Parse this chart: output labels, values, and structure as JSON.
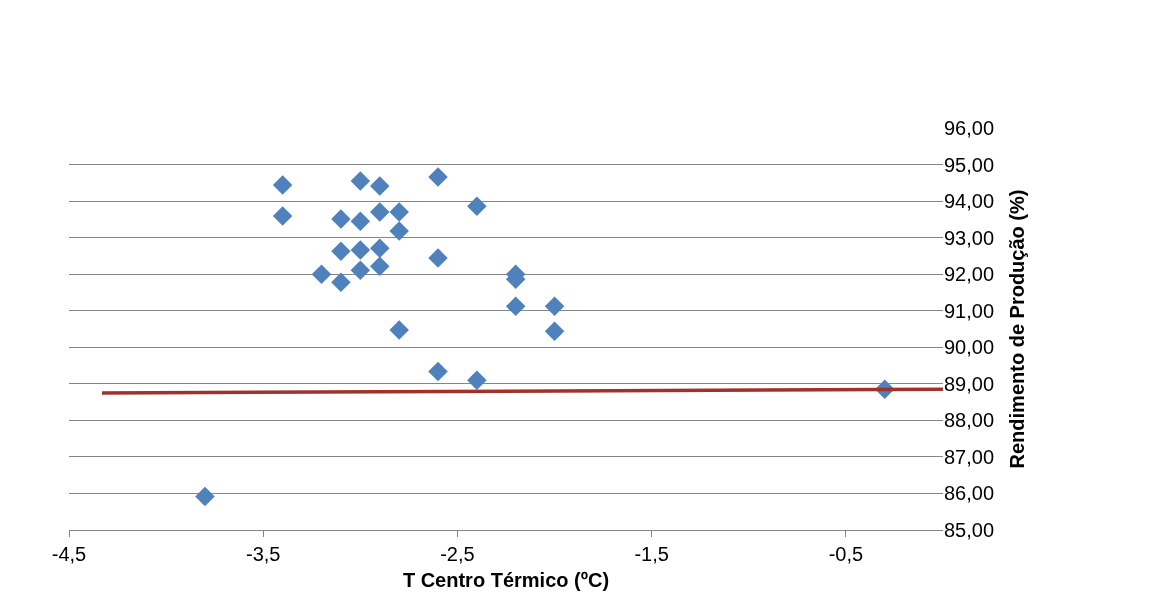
{
  "chart_data": {
    "type": "scatter",
    "xlabel": "T Centro Térmico (ºC)",
    "ylabel": "Rendimento de Produção (%)",
    "marker": "diamond",
    "grid": "y",
    "legend": false,
    "xlim": [
      -4.5,
      0
    ],
    "xticks": [
      {
        "value": -4.5,
        "label": "-4,5"
      },
      {
        "value": -3.5,
        "label": "-3,5"
      },
      {
        "value": -2.5,
        "label": "-2,5"
      },
      {
        "value": -1.5,
        "label": "-1,5"
      },
      {
        "value": -0.5,
        "label": "-0,5"
      }
    ],
    "ylim": [
      85,
      96
    ],
    "yticks": [
      {
        "value": 85,
        "label": "85,00"
      },
      {
        "value": 86,
        "label": "86,00"
      },
      {
        "value": 87,
        "label": "87,00"
      },
      {
        "value": 88,
        "label": "88,00"
      },
      {
        "value": 89,
        "label": "89,00"
      },
      {
        "value": 90,
        "label": "90,00"
      },
      {
        "value": 91,
        "label": "91,00"
      },
      {
        "value": 92,
        "label": "92,00"
      },
      {
        "value": 93,
        "label": "93,00"
      },
      {
        "value": 94,
        "label": "94,00"
      },
      {
        "value": 95,
        "label": "95,00"
      },
      {
        "value": 96,
        "label": "96,00"
      }
    ],
    "series": [
      {
        "color": "#4f81bd",
        "x": [
          -3.4,
          -3.4,
          -3.8,
          -3.2,
          -3.1,
          -3.1,
          -3.1,
          -3.0,
          -3.0,
          -3.0,
          -3.0,
          -2.9,
          -2.9,
          -2.9,
          -2.9,
          -2.8,
          -2.8,
          -2.8,
          -2.6,
          -2.6,
          -2.6,
          -2.4,
          -2.4,
          -2.2,
          -2.2,
          -2.2,
          -2.0,
          -2.0,
          -0.3
        ],
        "values": [
          94.44,
          93.59,
          85.92,
          92.0,
          93.51,
          92.63,
          91.78,
          94.55,
          93.45,
          92.66,
          92.11,
          94.41,
          93.7,
          92.71,
          92.22,
          93.7,
          93.18,
          90.47,
          94.66,
          92.44,
          89.34,
          93.86,
          89.1,
          92.0,
          91.86,
          91.12,
          91.12,
          90.44,
          88.85
        ]
      },
      {
        "type": "line",
        "marker": "none",
        "color": "#a0322d",
        "x": [
          -4.33,
          0
        ],
        "values": [
          88.75,
          88.85
        ]
      }
    ]
  }
}
